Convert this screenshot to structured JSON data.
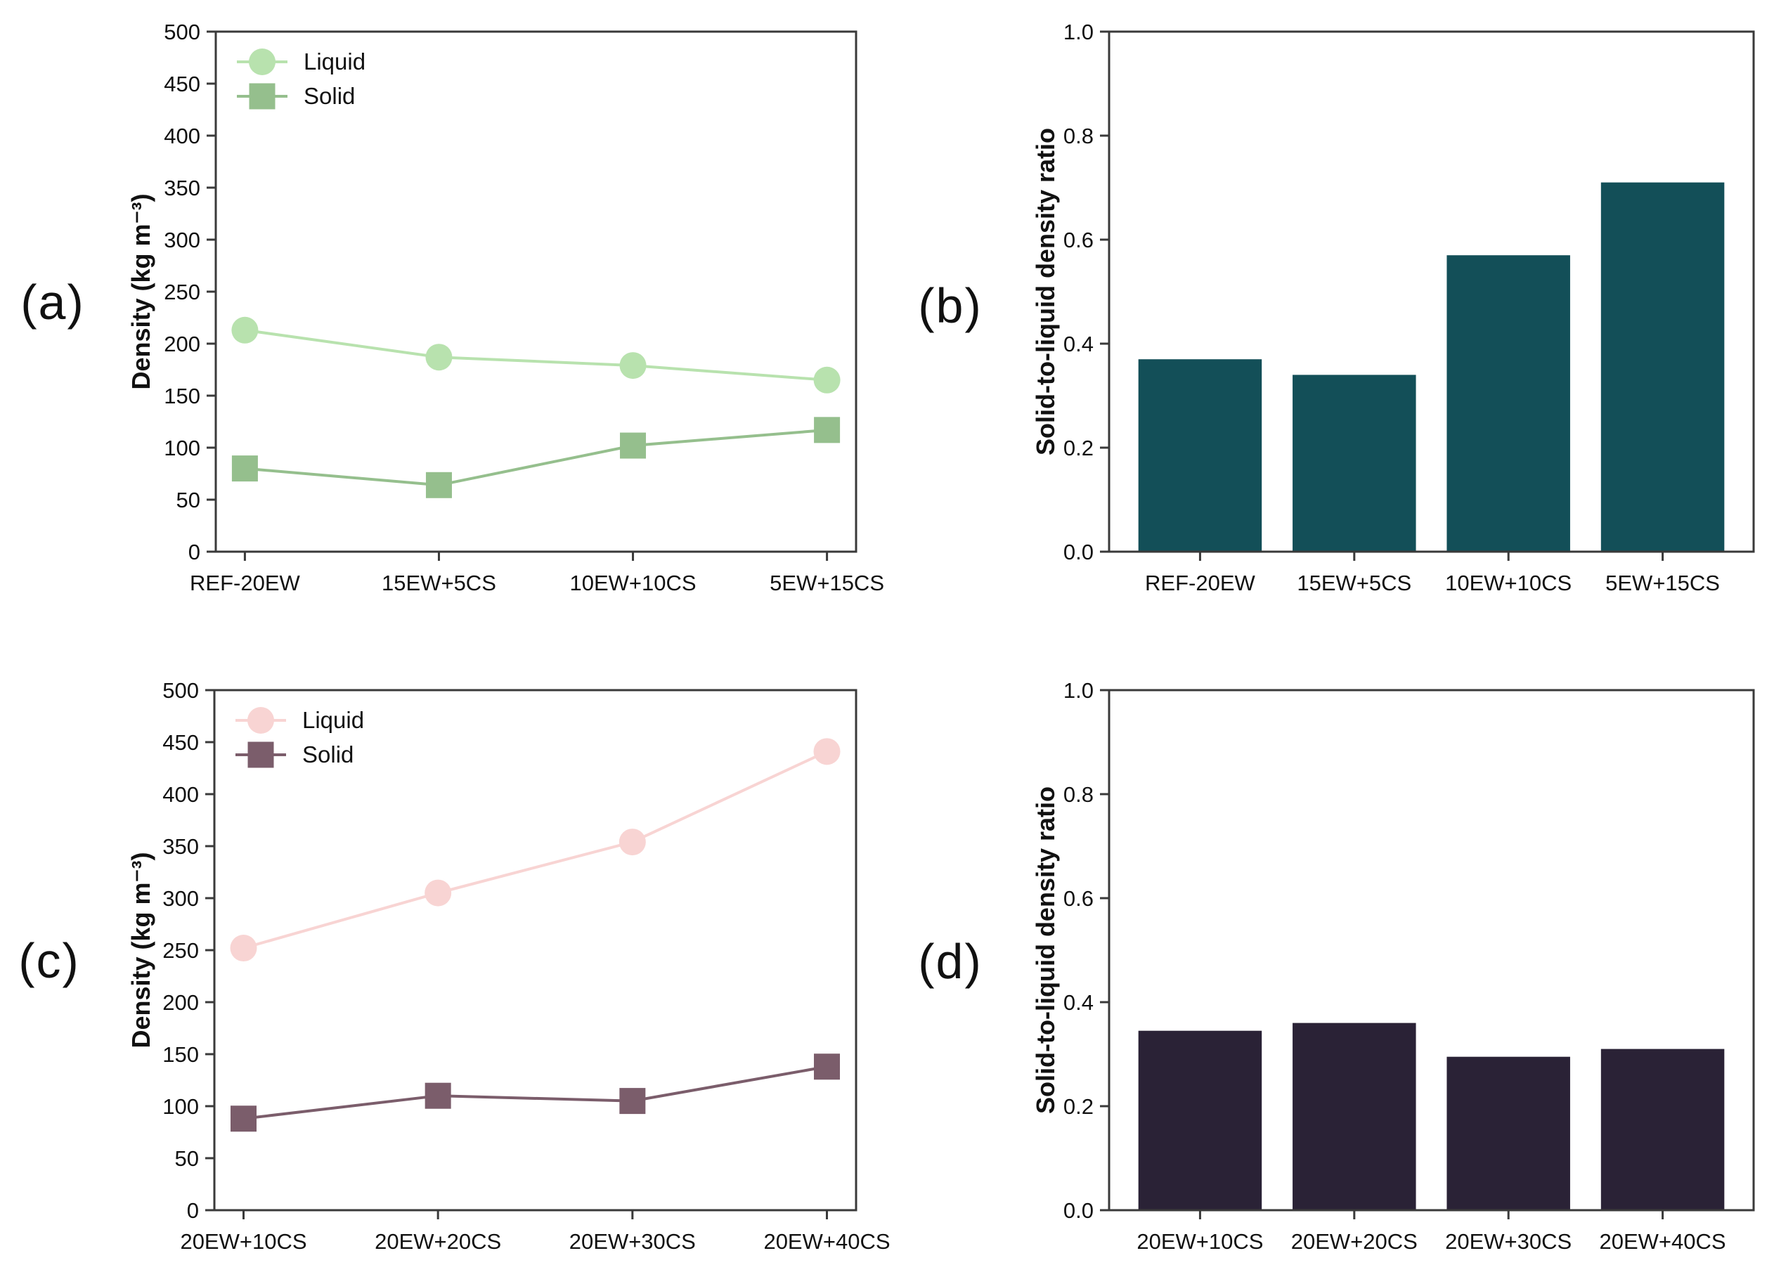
{
  "figure": {
    "background": "#ffffff",
    "spine_color": "#3a3a3a",
    "text_color": "#111111"
  },
  "chart_data": [
    {
      "id": "a",
      "type": "line",
      "panel_label": "(a)",
      "ylabel": "Density (kg m⁻³)",
      "ylim": [
        0,
        500
      ],
      "yticks": [
        0,
        50,
        100,
        150,
        200,
        250,
        300,
        350,
        400,
        450,
        500
      ],
      "ytick_labels": [
        "0",
        "50",
        "100",
        "150",
        "200",
        "250",
        "300",
        "350",
        "400",
        "450",
        "500"
      ],
      "categories": [
        "REF-20EW",
        "15EW+5CS",
        "10EW+10CS",
        "5EW+15CS"
      ],
      "legend_position": "upper left",
      "grid": false,
      "series": [
        {
          "name": "Liquid",
          "marker": "circle",
          "color": "#b8e2ae",
          "values": [
            213,
            187,
            179,
            165
          ]
        },
        {
          "name": "Solid",
          "marker": "square",
          "color": "#95bf8d",
          "values": [
            80,
            64,
            102,
            117
          ]
        }
      ]
    },
    {
      "id": "b",
      "type": "bar",
      "panel_label": "(b)",
      "ylabel": "Solid-to-liquid density ratio",
      "ylim": [
        0,
        1.0
      ],
      "yticks": [
        0,
        0.2,
        0.4,
        0.6,
        0.8,
        1.0
      ],
      "ytick_labels": [
        "0.0",
        "0.2",
        "0.4",
        "0.6",
        "0.8",
        "1.0"
      ],
      "categories": [
        "REF-20EW",
        "15EW+5CS",
        "10EW+10CS",
        "5EW+15CS"
      ],
      "grid": false,
      "bar_color": "#134f58",
      "values": [
        0.37,
        0.34,
        0.57,
        0.71
      ]
    },
    {
      "id": "c",
      "type": "line",
      "panel_label": "(c)",
      "ylabel": "Density (kg m⁻³)",
      "ylim": [
        0,
        500
      ],
      "yticks": [
        0,
        50,
        100,
        150,
        200,
        250,
        300,
        350,
        400,
        450,
        500
      ],
      "ytick_labels": [
        "0",
        "50",
        "100",
        "150",
        "200",
        "250",
        "300",
        "350",
        "400",
        "450",
        "500"
      ],
      "categories": [
        "20EW+10CS",
        "20EW+20CS",
        "20EW+30CS",
        "20EW+40CS"
      ],
      "legend_position": "upper left",
      "grid": false,
      "series": [
        {
          "name": "Liquid",
          "marker": "circle",
          "color": "#f8d4d3",
          "values": [
            252,
            305,
            354,
            441
          ]
        },
        {
          "name": "Solid",
          "marker": "square",
          "color": "#7b5d6b",
          "values": [
            88,
            110,
            105,
            138
          ]
        }
      ]
    },
    {
      "id": "d",
      "type": "bar",
      "panel_label": "(d)",
      "ylabel": "Solid-to-liquid density ratio",
      "ylim": [
        0,
        1.0
      ],
      "yticks": [
        0,
        0.2,
        0.4,
        0.6,
        0.8,
        1.0
      ],
      "ytick_labels": [
        "0.0",
        "0.2",
        "0.4",
        "0.6",
        "0.8",
        "1.0"
      ],
      "categories": [
        "20EW+10CS",
        "20EW+20CS",
        "20EW+30CS",
        "20EW+40CS"
      ],
      "grid": false,
      "bar_color": "#2a2236",
      "values": [
        0.345,
        0.36,
        0.295,
        0.31
      ]
    }
  ]
}
